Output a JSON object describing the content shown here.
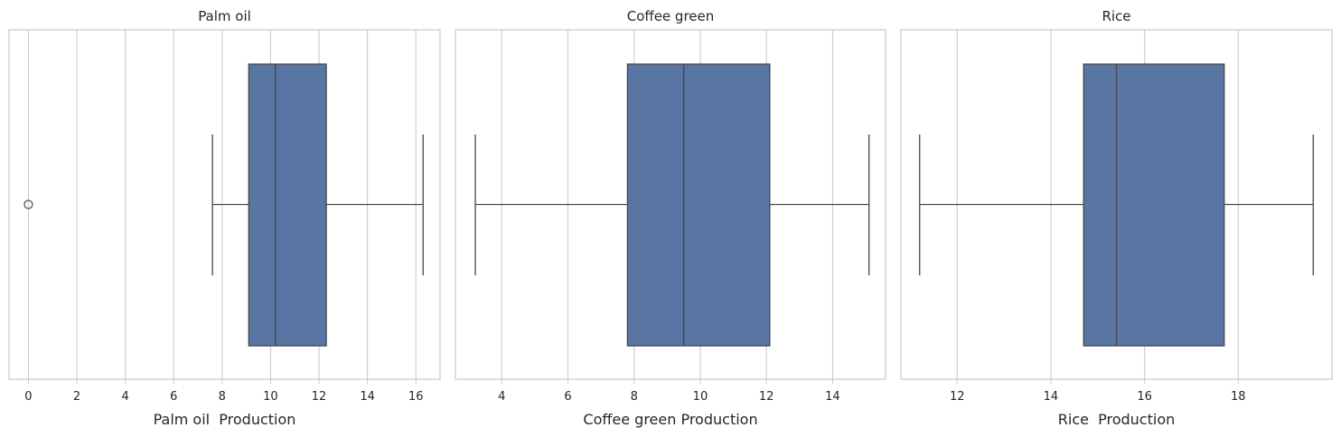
{
  "chart_data": [
    {
      "type": "box",
      "title": "Palm oil",
      "xlabel": "Palm oil  Production",
      "xlim": [
        -0.8,
        17.0
      ],
      "xticks": [
        0,
        2,
        4,
        6,
        8,
        10,
        12,
        14,
        16
      ],
      "box": {
        "whisker_low": 7.6,
        "q1": 9.1,
        "median": 10.2,
        "q3": 12.3,
        "whisker_high": 16.3
      },
      "outliers": [
        0.0
      ],
      "color": "#5975a4",
      "grid": true
    },
    {
      "type": "box",
      "title": "Coffee green",
      "xlabel": "Coffee green Production",
      "xlim": [
        2.6,
        15.6
      ],
      "xticks": [
        4,
        6,
        8,
        10,
        12,
        14
      ],
      "box": {
        "whisker_low": 3.2,
        "q1": 7.8,
        "median": 9.5,
        "q3": 12.1,
        "whisker_high": 15.1
      },
      "outliers": [],
      "color": "#5975a4",
      "grid": true
    },
    {
      "type": "box",
      "title": "Rice",
      "xlabel": "Rice  Production",
      "xlim": [
        10.8,
        20.0
      ],
      "xticks": [
        12,
        14,
        16,
        18
      ],
      "box": {
        "whisker_low": 11.2,
        "q1": 14.7,
        "median": 15.4,
        "q3": 17.7,
        "whisker_high": 19.6
      },
      "outliers": [],
      "color": "#5975a4",
      "grid": true
    }
  ]
}
